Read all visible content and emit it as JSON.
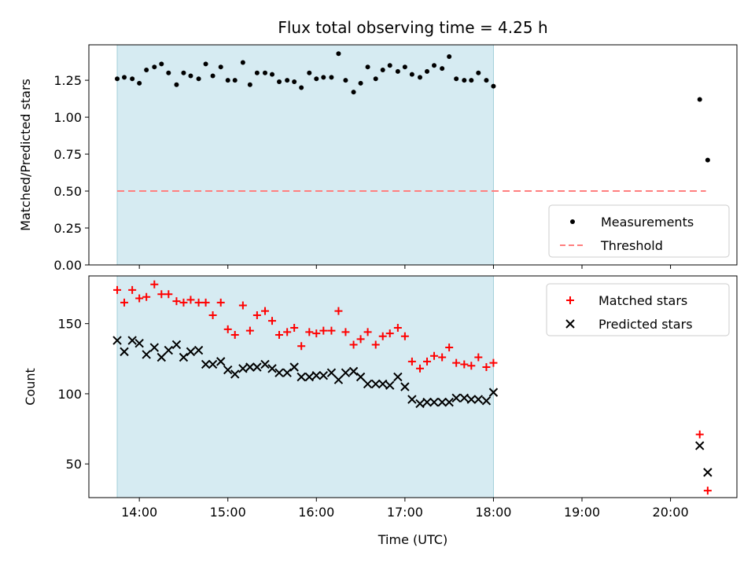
{
  "chart_data": {
    "title": "Flux total observing time = 4.25 h",
    "xlabel": "Time (UTC)",
    "xlim": [
      13.43,
      20.75
    ],
    "x_ticks": [
      {
        "value": 14,
        "label": "14:00"
      },
      {
        "value": 15,
        "label": "15:00"
      },
      {
        "value": 16,
        "label": "16:00"
      },
      {
        "value": 17,
        "label": "17:00"
      },
      {
        "value": 18,
        "label": "18:00"
      },
      {
        "value": 19,
        "label": "19:00"
      },
      {
        "value": 20,
        "label": "20:00"
      }
    ],
    "shaded_span": [
      13.75,
      18.0
    ],
    "panels": [
      {
        "type": "scatter",
        "ylabel": "Matched/Predicted stars",
        "ylim": [
          0,
          1.49
        ],
        "y_ticks": [
          "0.00",
          "0.25",
          "0.50",
          "0.75",
          "1.00",
          "1.25"
        ],
        "y_tick_values": [
          0,
          0.25,
          0.5,
          0.75,
          1.0,
          1.25
        ],
        "legend": [
          {
            "label": "Measurements",
            "marker": "dot",
            "color": "#000000"
          },
          {
            "label": "Threshold",
            "marker": "dash",
            "color": "#ff7f7f"
          }
        ],
        "threshold": {
          "y": 0.5,
          "x": [
            13.75,
            20.4
          ],
          "color": "#ff7f7f"
        },
        "series": [
          {
            "name": "Measurements",
            "marker": "dot",
            "color": "#000000",
            "x": [
              13.75,
              13.83,
              13.92,
              14.0,
              14.08,
              14.17,
              14.25,
              14.33,
              14.42,
              14.5,
              14.58,
              14.67,
              14.75,
              14.83,
              14.92,
              15.0,
              15.08,
              15.17,
              15.25,
              15.33,
              15.42,
              15.5,
              15.58,
              15.67,
              15.75,
              15.83,
              15.92,
              16.0,
              16.08,
              16.17,
              16.25,
              16.33,
              16.42,
              16.5,
              16.58,
              16.67,
              16.75,
              16.83,
              16.92,
              17.0,
              17.08,
              17.17,
              17.25,
              17.33,
              17.42,
              17.5,
              17.58,
              17.67,
              17.75,
              17.83,
              17.92,
              18.0,
              20.33,
              20.42
            ],
            "y": [
              1.26,
              1.27,
              1.26,
              1.23,
              1.32,
              1.34,
              1.36,
              1.3,
              1.22,
              1.3,
              1.28,
              1.26,
              1.36,
              1.28,
              1.34,
              1.25,
              1.25,
              1.37,
              1.22,
              1.3,
              1.3,
              1.29,
              1.24,
              1.25,
              1.24,
              1.2,
              1.3,
              1.26,
              1.27,
              1.27,
              1.43,
              1.25,
              1.17,
              1.23,
              1.34,
              1.26,
              1.32,
              1.35,
              1.31,
              1.34,
              1.29,
              1.27,
              1.31,
              1.35,
              1.33,
              1.41,
              1.26,
              1.25,
              1.25,
              1.3,
              1.25,
              1.21,
              1.12,
              0.71
            ]
          }
        ]
      },
      {
        "type": "scatter",
        "ylabel": "Count",
        "ylim": [
          26,
          184
        ],
        "y_ticks": [
          "50",
          "100",
          "150"
        ],
        "y_tick_values": [
          50,
          100,
          150
        ],
        "legend": [
          {
            "label": "Matched stars",
            "marker": "plus",
            "color": "#ff0000"
          },
          {
            "label": "Predicted stars",
            "marker": "cross",
            "color": "#000000"
          }
        ],
        "series": [
          {
            "name": "Matched stars",
            "marker": "plus",
            "color": "#ff0000",
            "x": [
              13.75,
              13.83,
              13.92,
              14.0,
              14.08,
              14.17,
              14.25,
              14.33,
              14.42,
              14.5,
              14.58,
              14.67,
              14.75,
              14.83,
              14.92,
              15.0,
              15.08,
              15.17,
              15.25,
              15.33,
              15.42,
              15.5,
              15.58,
              15.67,
              15.75,
              15.83,
              15.92,
              16.0,
              16.08,
              16.17,
              16.25,
              16.33,
              16.42,
              16.5,
              16.58,
              16.67,
              16.75,
              16.83,
              16.92,
              17.0,
              17.08,
              17.17,
              17.25,
              17.33,
              17.42,
              17.5,
              17.58,
              17.67,
              17.75,
              17.83,
              17.92,
              18.0,
              20.33,
              20.42
            ],
            "y": [
              174,
              165,
              174,
              168,
              169,
              178,
              171,
              171,
              166,
              165,
              167,
              165,
              165,
              156,
              165,
              146,
              142,
              163,
              145,
              156,
              159,
              152,
              142,
              144,
              147,
              134,
              144,
              143,
              145,
              145,
              159,
              144,
              135,
              139,
              144,
              135,
              141,
              143,
              147,
              141,
              123,
              118,
              123,
              127,
              126,
              133,
              122,
              121,
              120,
              126,
              119,
              122,
              71,
              31
            ]
          },
          {
            "name": "Predicted stars",
            "marker": "cross",
            "color": "#000000",
            "x": [
              13.75,
              13.83,
              13.92,
              14.0,
              14.08,
              14.17,
              14.25,
              14.33,
              14.42,
              14.5,
              14.58,
              14.67,
              14.75,
              14.83,
              14.92,
              15.0,
              15.08,
              15.17,
              15.25,
              15.33,
              15.42,
              15.5,
              15.58,
              15.67,
              15.75,
              15.83,
              15.92,
              16.0,
              16.08,
              16.17,
              16.25,
              16.33,
              16.42,
              16.5,
              16.58,
              16.67,
              16.75,
              16.83,
              16.92,
              17.0,
              17.08,
              17.17,
              17.25,
              17.33,
              17.42,
              17.5,
              17.58,
              17.67,
              17.75,
              17.83,
              17.92,
              18.0,
              20.33,
              20.42
            ],
            "y": [
              138,
              130,
              138,
              136,
              128,
              133,
              126,
              131,
              135,
              126,
              130,
              131,
              121,
              121,
              123,
              117,
              114,
              118,
              119,
              119,
              121,
              118,
              115,
              115,
              119,
              112,
              112,
              113,
              113,
              115,
              110,
              115,
              116,
              112,
              107,
              107,
              107,
              106,
              112,
              105,
              96,
              93,
              94,
              94,
              94,
              94,
              97,
              97,
              96,
              96,
              95,
              101,
              63,
              44
            ]
          }
        ]
      }
    ]
  }
}
